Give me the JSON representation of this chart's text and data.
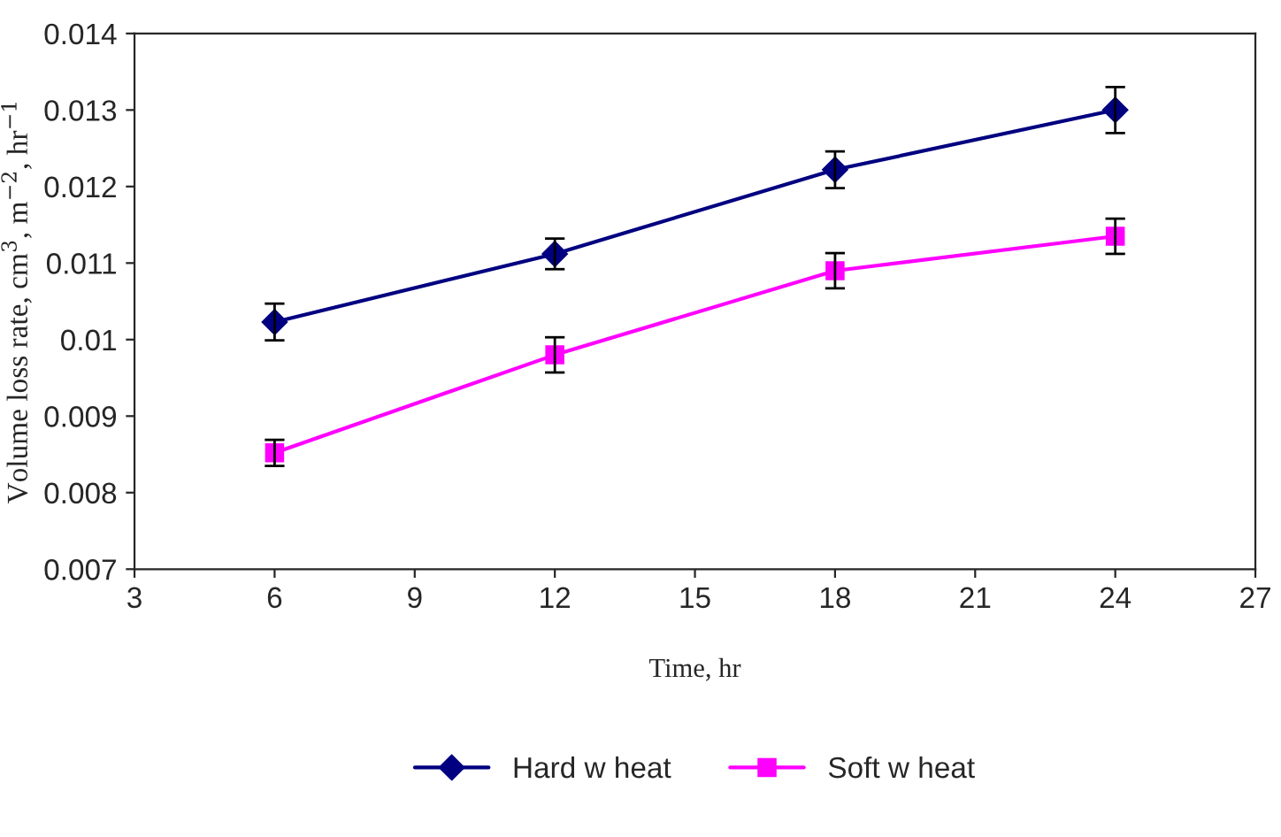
{
  "chart_data": {
    "type": "line",
    "xlabel": "Time, hr",
    "ylabel": "Volume loss rate, cm$^{3}$, m$^{−2}$, hr$^{−1}$",
    "x": [
      6,
      12,
      18,
      24
    ],
    "series": [
      {
        "name": "Hard w heat",
        "color": "#000080",
        "marker": "diamond",
        "values": [
          0.01023,
          0.01112,
          0.01222,
          0.013
        ],
        "errors": [
          0.00024,
          0.0002,
          0.00024,
          0.0003
        ]
      },
      {
        "name": "Soft w heat",
        "color": "#ff00ff",
        "marker": "square",
        "values": [
          0.00852,
          0.0098,
          0.0109,
          0.01135
        ],
        "errors": [
          0.00017,
          0.00023,
          0.00023,
          0.00023
        ]
      }
    ],
    "xlim": [
      3,
      27
    ],
    "xticks": [
      3,
      6,
      9,
      12,
      15,
      18,
      21,
      24,
      27
    ],
    "ylim": [
      0.007,
      0.014
    ],
    "yticks": [
      0.007,
      0.008,
      0.009,
      0.01,
      0.011,
      0.012,
      0.013,
      0.014
    ],
    "grid": false,
    "legend": "bottom",
    "line_style": "solid"
  }
}
